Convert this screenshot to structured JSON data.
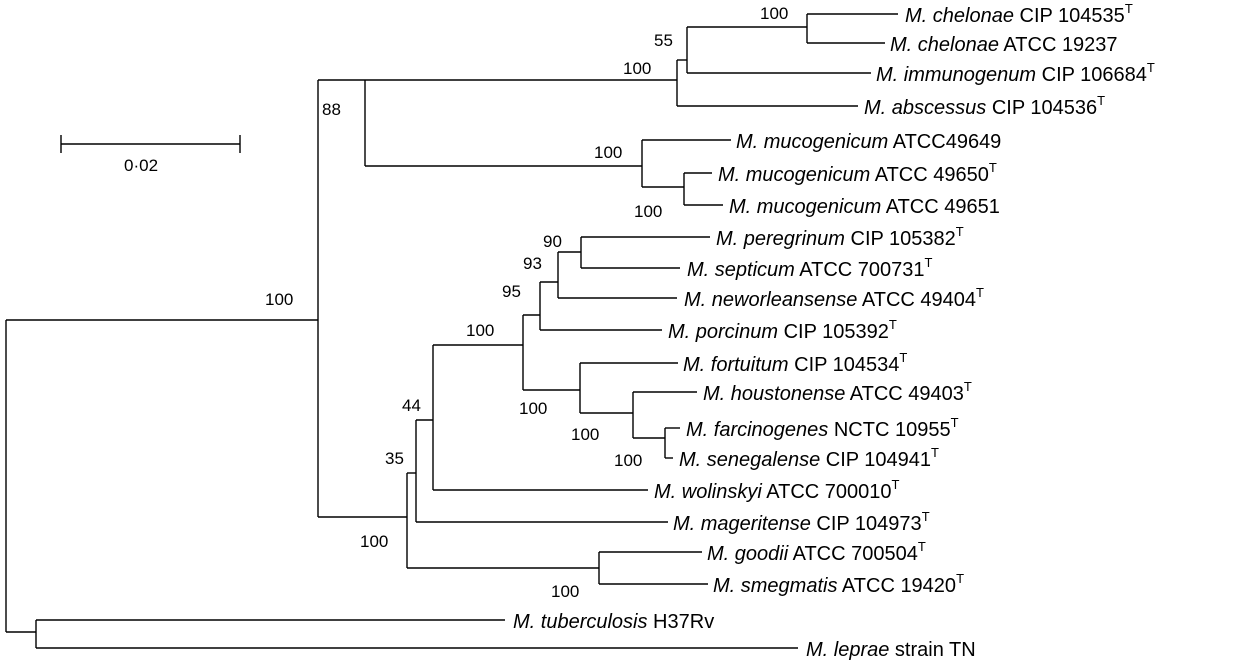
{
  "diagram": {
    "type": "phylogenetic-tree",
    "scale_bar": {
      "label": "0·02"
    },
    "taxa": [
      {
        "id": "chelonae_cip",
        "genus": "M.",
        "species": "chelonae",
        "strain": "CIP 104535",
        "superscript": "T"
      },
      {
        "id": "chelonae_atcc",
        "genus": "M.",
        "species": "chelonae",
        "strain": "ATCC 19237",
        "superscript": ""
      },
      {
        "id": "immunogenum",
        "genus": "M.",
        "species": "immunogenum",
        "strain": "CIP 106684",
        "superscript": "T"
      },
      {
        "id": "abscessus",
        "genus": "M.",
        "species": "abscessus",
        "strain": "CIP 104536",
        "superscript": "T"
      },
      {
        "id": "mucogenicum_49649",
        "genus": "M.",
        "species": "mucogenicum",
        "strain": "ATCC49649",
        "superscript": ""
      },
      {
        "id": "mucogenicum_49650",
        "genus": "M.",
        "species": "mucogenicum",
        "strain": "ATCC 49650",
        "superscript": "T"
      },
      {
        "id": "mucogenicum_49651",
        "genus": "M.",
        "species": "mucogenicum",
        "strain": "ATCC 49651",
        "superscript": ""
      },
      {
        "id": "peregrinum",
        "genus": "M.",
        "species": "peregrinum",
        "strain": "CIP 105382",
        "superscript": "T"
      },
      {
        "id": "septicum",
        "genus": "M.",
        "species": "septicum",
        "strain": "ATCC 700731",
        "superscript": "T"
      },
      {
        "id": "neworleansense",
        "genus": "M.",
        "species": "neworleansense",
        "strain": "ATCC 49404",
        "superscript": "T"
      },
      {
        "id": "porcinum",
        "genus": "M.",
        "species": "porcinum",
        "strain": "CIP 105392",
        "superscript": "T"
      },
      {
        "id": "fortuitum",
        "genus": "M.",
        "species": "fortuitum",
        "strain": "CIP 104534",
        "superscript": "T"
      },
      {
        "id": "houstonense",
        "genus": "M.",
        "species": "houstonense",
        "strain": "ATCC 49403",
        "superscript": "T"
      },
      {
        "id": "farcinogenes",
        "genus": "M.",
        "species": "farcinogenes",
        "strain": "NCTC 10955",
        "superscript": "T"
      },
      {
        "id": "senegalense",
        "genus": "M.",
        "species": "senegalense",
        "strain": "CIP 104941",
        "superscript": "T"
      },
      {
        "id": "wolinskyi",
        "genus": "M.",
        "species": "wolinskyi",
        "strain": "ATCC 700010",
        "superscript": "T"
      },
      {
        "id": "mageritense",
        "genus": "M.",
        "species": "mageritense",
        "strain": "CIP 104973",
        "superscript": "T"
      },
      {
        "id": "goodii",
        "genus": "M.",
        "species": "goodii",
        "strain": "ATCC 700504",
        "superscript": "T"
      },
      {
        "id": "smegmatis",
        "genus": "M.",
        "species": "smegmatis",
        "strain": "ATCC 19420",
        "superscript": "T"
      },
      {
        "id": "tuberculosis",
        "genus": "M.",
        "species": "tuberculosis",
        "strain": "H37Rv",
        "superscript": ""
      },
      {
        "id": "leprae",
        "genus": "M.",
        "species": "leprae",
        "strain": "strain TN",
        "superscript": ""
      }
    ],
    "bootstrap_values": [
      {
        "id": "b_chelonae_pair",
        "value": "100"
      },
      {
        "id": "b_chelonae_immuno",
        "value": "55"
      },
      {
        "id": "b_chelonae_group",
        "value": "100"
      },
      {
        "id": "b_rapid_upper",
        "value": "88"
      },
      {
        "id": "b_mucogenicum",
        "value": "100"
      },
      {
        "id": "b_mucogenicum_pair",
        "value": "100"
      },
      {
        "id": "b_peregrinum_septicum",
        "value": "90"
      },
      {
        "id": "b_peregrinum_neworleans",
        "value": "93"
      },
      {
        "id": "b_fortuitum_group",
        "value": "95"
      },
      {
        "id": "b_fortuitum_complex",
        "value": "100"
      },
      {
        "id": "b_fortuitum_lower",
        "value": "100"
      },
      {
        "id": "b_houstonense_group",
        "value": "100"
      },
      {
        "id": "b_farcinogenes_pair",
        "value": "100"
      },
      {
        "id": "b_wolinskyi",
        "value": "44"
      },
      {
        "id": "b_mageritense",
        "value": "35"
      },
      {
        "id": "b_rapid_lower",
        "value": "100"
      },
      {
        "id": "b_goodii_smegmatis",
        "value": "100"
      },
      {
        "id": "b_root_rapid",
        "value": "100"
      }
    ]
  }
}
